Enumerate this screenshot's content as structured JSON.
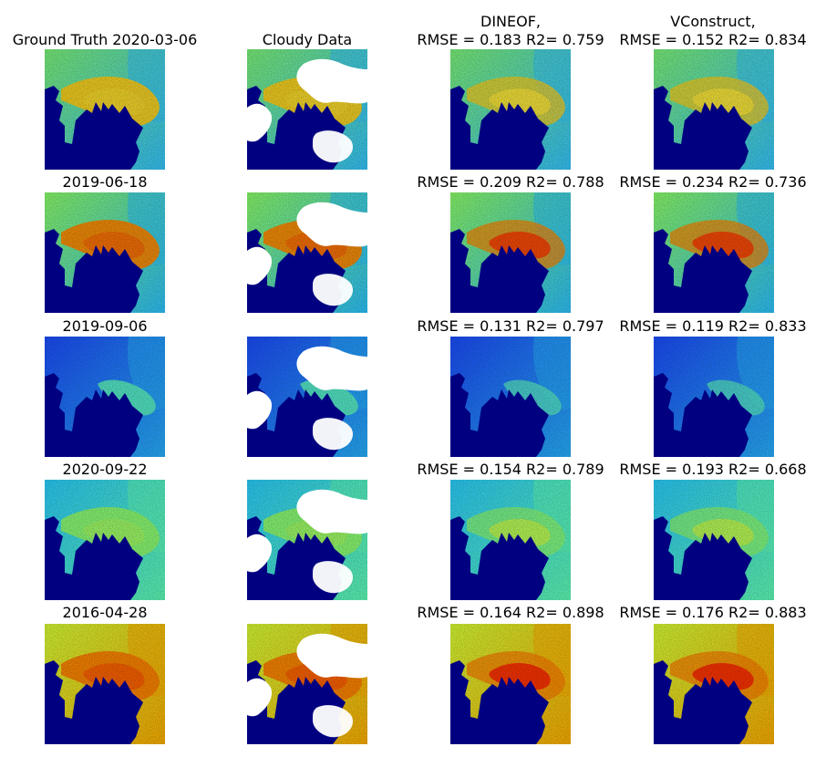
{
  "columns": {
    "ground_truth": "Ground Truth",
    "cloudy": "Cloudy Data",
    "dineof": "DINEOF,",
    "vconstruct": "VConstruct,"
  },
  "rows": [
    {
      "title_date": "Ground Truth 2020-03-06",
      "dineof_metrics": "RMSE = 0.183 R2= 0.759",
      "vconstruct_metrics": "RMSE = 0.152 R2= 0.834",
      "palette": {
        "base": "#7df57a",
        "patch": "#35c7ff",
        "plume": "#ffd21a",
        "plume_core": "#ffea3a",
        "land": "#000080"
      }
    },
    {
      "title_date": "2019-06-18",
      "dineof_metrics": "RMSE = 0.209 R2= 0.788",
      "vconstruct_metrics": "RMSE = 0.234 R2= 0.736",
      "palette": {
        "base": "#8cff6a",
        "patch": "#2cc5ff",
        "plume": "#ff8a00",
        "plume_core": "#ff3b00",
        "land": "#000080"
      }
    },
    {
      "title_date": "2019-09-06",
      "dineof_metrics": "RMSE = 0.131 R2= 0.797",
      "vconstruct_metrics": "RMSE = 0.119 R2= 0.833",
      "palette": {
        "base": "#1b4dff",
        "patch": "#27b2ff",
        "plume": "#59f0c7",
        "plume_core": "#b7ff48",
        "land": "#000080"
      }
    },
    {
      "title_date": "2020-09-22",
      "dineof_metrics": "RMSE = 0.154 R2= 0.789",
      "vconstruct_metrics": "RMSE = 0.193 R2= 0.668",
      "palette": {
        "base": "#2ad0ff",
        "patch": "#61ffb8",
        "plume": "#8fff6f",
        "plume_core": "#c6ff4f",
        "land": "#000080"
      }
    },
    {
      "title_date": "2016-04-28",
      "dineof_metrics": "RMSE = 0.164 R2= 0.898",
      "vconstruct_metrics": "RMSE = 0.176 R2= 0.883",
      "palette": {
        "base": "#d9ff35",
        "patch": "#ffb000",
        "plume": "#ff8200",
        "plume_core": "#ff2200",
        "land": "#000080"
      }
    }
  ]
}
